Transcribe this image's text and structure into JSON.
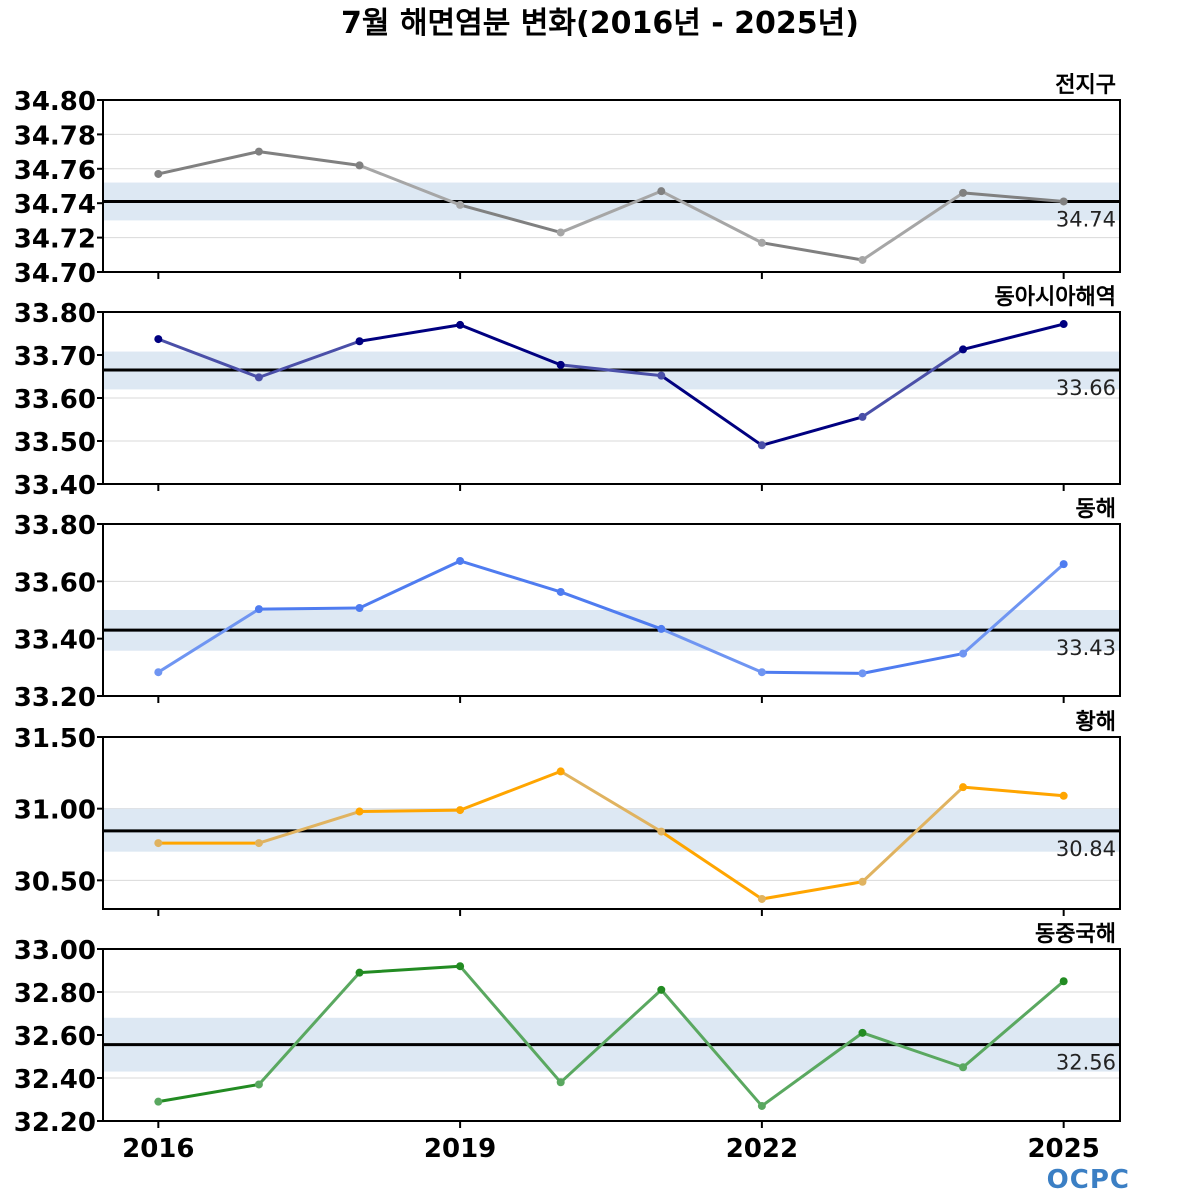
{
  "title": "7월 해면염분 변화(2016년 - 2025년)",
  "logo_text": "OCPC",
  "chart_data": [
    {
      "type": "line",
      "title": "전지구",
      "x": [
        2016,
        2017,
        2018,
        2019,
        2020,
        2021,
        2022,
        2023,
        2024,
        2025
      ],
      "values": [
        34.757,
        34.77,
        34.762,
        34.739,
        34.723,
        34.747,
        34.717,
        34.707,
        34.746,
        34.741
      ],
      "mean": 34.741,
      "mean_label": "34.74",
      "band": [
        34.73,
        34.752
      ],
      "ylim": [
        34.7,
        34.8
      ],
      "yticks": [
        34.7,
        34.72,
        34.74,
        34.76,
        34.78,
        34.8
      ],
      "ytick_labels": [
        "34.70",
        "34.72",
        "34.74",
        "34.76",
        "34.78",
        "34.80"
      ],
      "color": "#808080",
      "light_color": "#a6a6a6"
    },
    {
      "type": "line",
      "title": "동아시아해역",
      "x": [
        2016,
        2017,
        2018,
        2019,
        2020,
        2021,
        2022,
        2023,
        2024,
        2025
      ],
      "values": [
        33.737,
        33.648,
        33.732,
        33.77,
        33.677,
        33.652,
        33.49,
        33.556,
        33.713,
        33.772
      ],
      "mean": 33.665,
      "mean_label": "33.66",
      "band": [
        33.62,
        33.708
      ],
      "ylim": [
        33.4,
        33.8
      ],
      "yticks": [
        33.4,
        33.5,
        33.6,
        33.7,
        33.8
      ],
      "ytick_labels": [
        "33.40",
        "33.50",
        "33.60",
        "33.70",
        "33.80"
      ],
      "color": "#000080",
      "light_color": "#4a4fa8"
    },
    {
      "type": "line",
      "title": "동해",
      "x": [
        2016,
        2017,
        2018,
        2019,
        2020,
        2021,
        2022,
        2023,
        2024,
        2025
      ],
      "values": [
        33.283,
        33.503,
        33.507,
        33.671,
        33.563,
        33.434,
        33.283,
        33.279,
        33.348,
        33.66
      ],
      "mean": 33.43,
      "mean_label": "33.43",
      "band": [
        33.358,
        33.5
      ],
      "ylim": [
        33.2,
        33.8
      ],
      "yticks": [
        33.2,
        33.4,
        33.6,
        33.8
      ],
      "ytick_labels": [
        "33.20",
        "33.40",
        "33.60",
        "33.80"
      ],
      "color": "#4f7cf0",
      "light_color": "#6f95f2"
    },
    {
      "type": "line",
      "title": "황해",
      "x": [
        2016,
        2017,
        2018,
        2019,
        2020,
        2021,
        2022,
        2023,
        2024,
        2025
      ],
      "values": [
        30.76,
        30.76,
        30.98,
        30.99,
        31.26,
        30.84,
        30.37,
        30.49,
        31.15,
        31.09
      ],
      "mean": 30.845,
      "mean_label": "30.84",
      "band": [
        30.7,
        31.0
      ],
      "ylim": [
        30.3,
        31.5
      ],
      "yticks": [
        30.5,
        31.0,
        31.5
      ],
      "ytick_labels": [
        "30.50",
        "31.00",
        "31.50"
      ],
      "color": "#ffa500",
      "light_color": "#e0b360"
    },
    {
      "type": "line",
      "title": "동중국해",
      "x": [
        2016,
        2017,
        2018,
        2019,
        2020,
        2021,
        2022,
        2023,
        2024,
        2025
      ],
      "values": [
        32.29,
        32.37,
        32.89,
        32.92,
        32.38,
        32.81,
        32.27,
        32.61,
        32.45,
        32.85
      ],
      "mean": 32.555,
      "mean_label": "32.56",
      "band": [
        32.43,
        32.68
      ],
      "ylim": [
        32.2,
        33.0
      ],
      "yticks": [
        32.2,
        32.4,
        32.6,
        32.8,
        33.0
      ],
      "ytick_labels": [
        "32.20",
        "32.40",
        "32.60",
        "32.80",
        "33.00"
      ],
      "color": "#228b22",
      "light_color": "#5aa860"
    }
  ],
  "xticks": [
    2016,
    2019,
    2022,
    2025
  ],
  "xtick_labels": [
    "2016",
    "2019",
    "2022",
    "2025"
  ],
  "band_color": "#dde8f3",
  "mean_line_color": "#000000"
}
